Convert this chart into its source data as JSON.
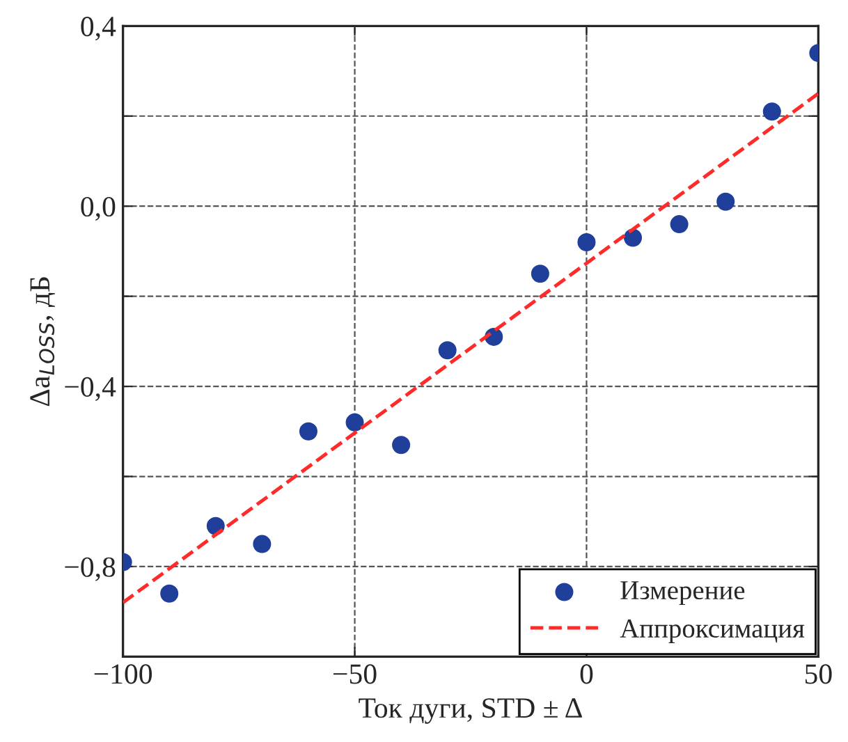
{
  "chart_data": {
    "type": "scatter",
    "xlabel": "Ток дуги, STD ± Δ",
    "ylabel": "Δa$_{LOSS}$, дБ",
    "x": [
      -100,
      -90,
      -80,
      -70,
      -60,
      -50,
      -40,
      -30,
      -20,
      -10,
      0,
      10,
      20,
      30,
      40,
      50
    ],
    "series": [
      {
        "name": "Измерение",
        "color": "#1f3f9a",
        "marker": "circle",
        "values": [
          -0.79,
          -0.86,
          -0.71,
          -0.75,
          -0.5,
          -0.48,
          -0.53,
          -0.32,
          -0.29,
          -0.15,
          -0.08,
          -0.07,
          -0.04,
          0.01,
          0.21,
          0.34
        ]
      },
      {
        "name": "Аппроксимация",
        "type": "line",
        "color": "#ff2a2a",
        "line_style": "dashed",
        "marker": "none",
        "x": [
          -100,
          50
        ],
        "values": [
          -0.88,
          0.25
        ]
      }
    ],
    "xlim": [
      -100,
      50
    ],
    "xticks": [
      {
        "value": -100,
        "label": "−100"
      },
      {
        "value": -50,
        "label": "−50"
      },
      0,
      50
    ],
    "ylim": [
      -1.0,
      0.4
    ],
    "yticks": [
      {
        "value": -1.0,
        "label": null
      },
      {
        "value": -0.8,
        "label": "−0,8"
      },
      {
        "value": -0.6,
        "label": null
      },
      {
        "value": -0.4,
        "label": "−0,4"
      },
      {
        "value": -0.2,
        "label": null
      },
      {
        "value": 0.0,
        "label": "0,0"
      },
      {
        "value": 0.2,
        "label": null
      },
      {
        "value": 0.4,
        "label": "0,4"
      }
    ],
    "grid": true,
    "legend": "bottom right"
  }
}
